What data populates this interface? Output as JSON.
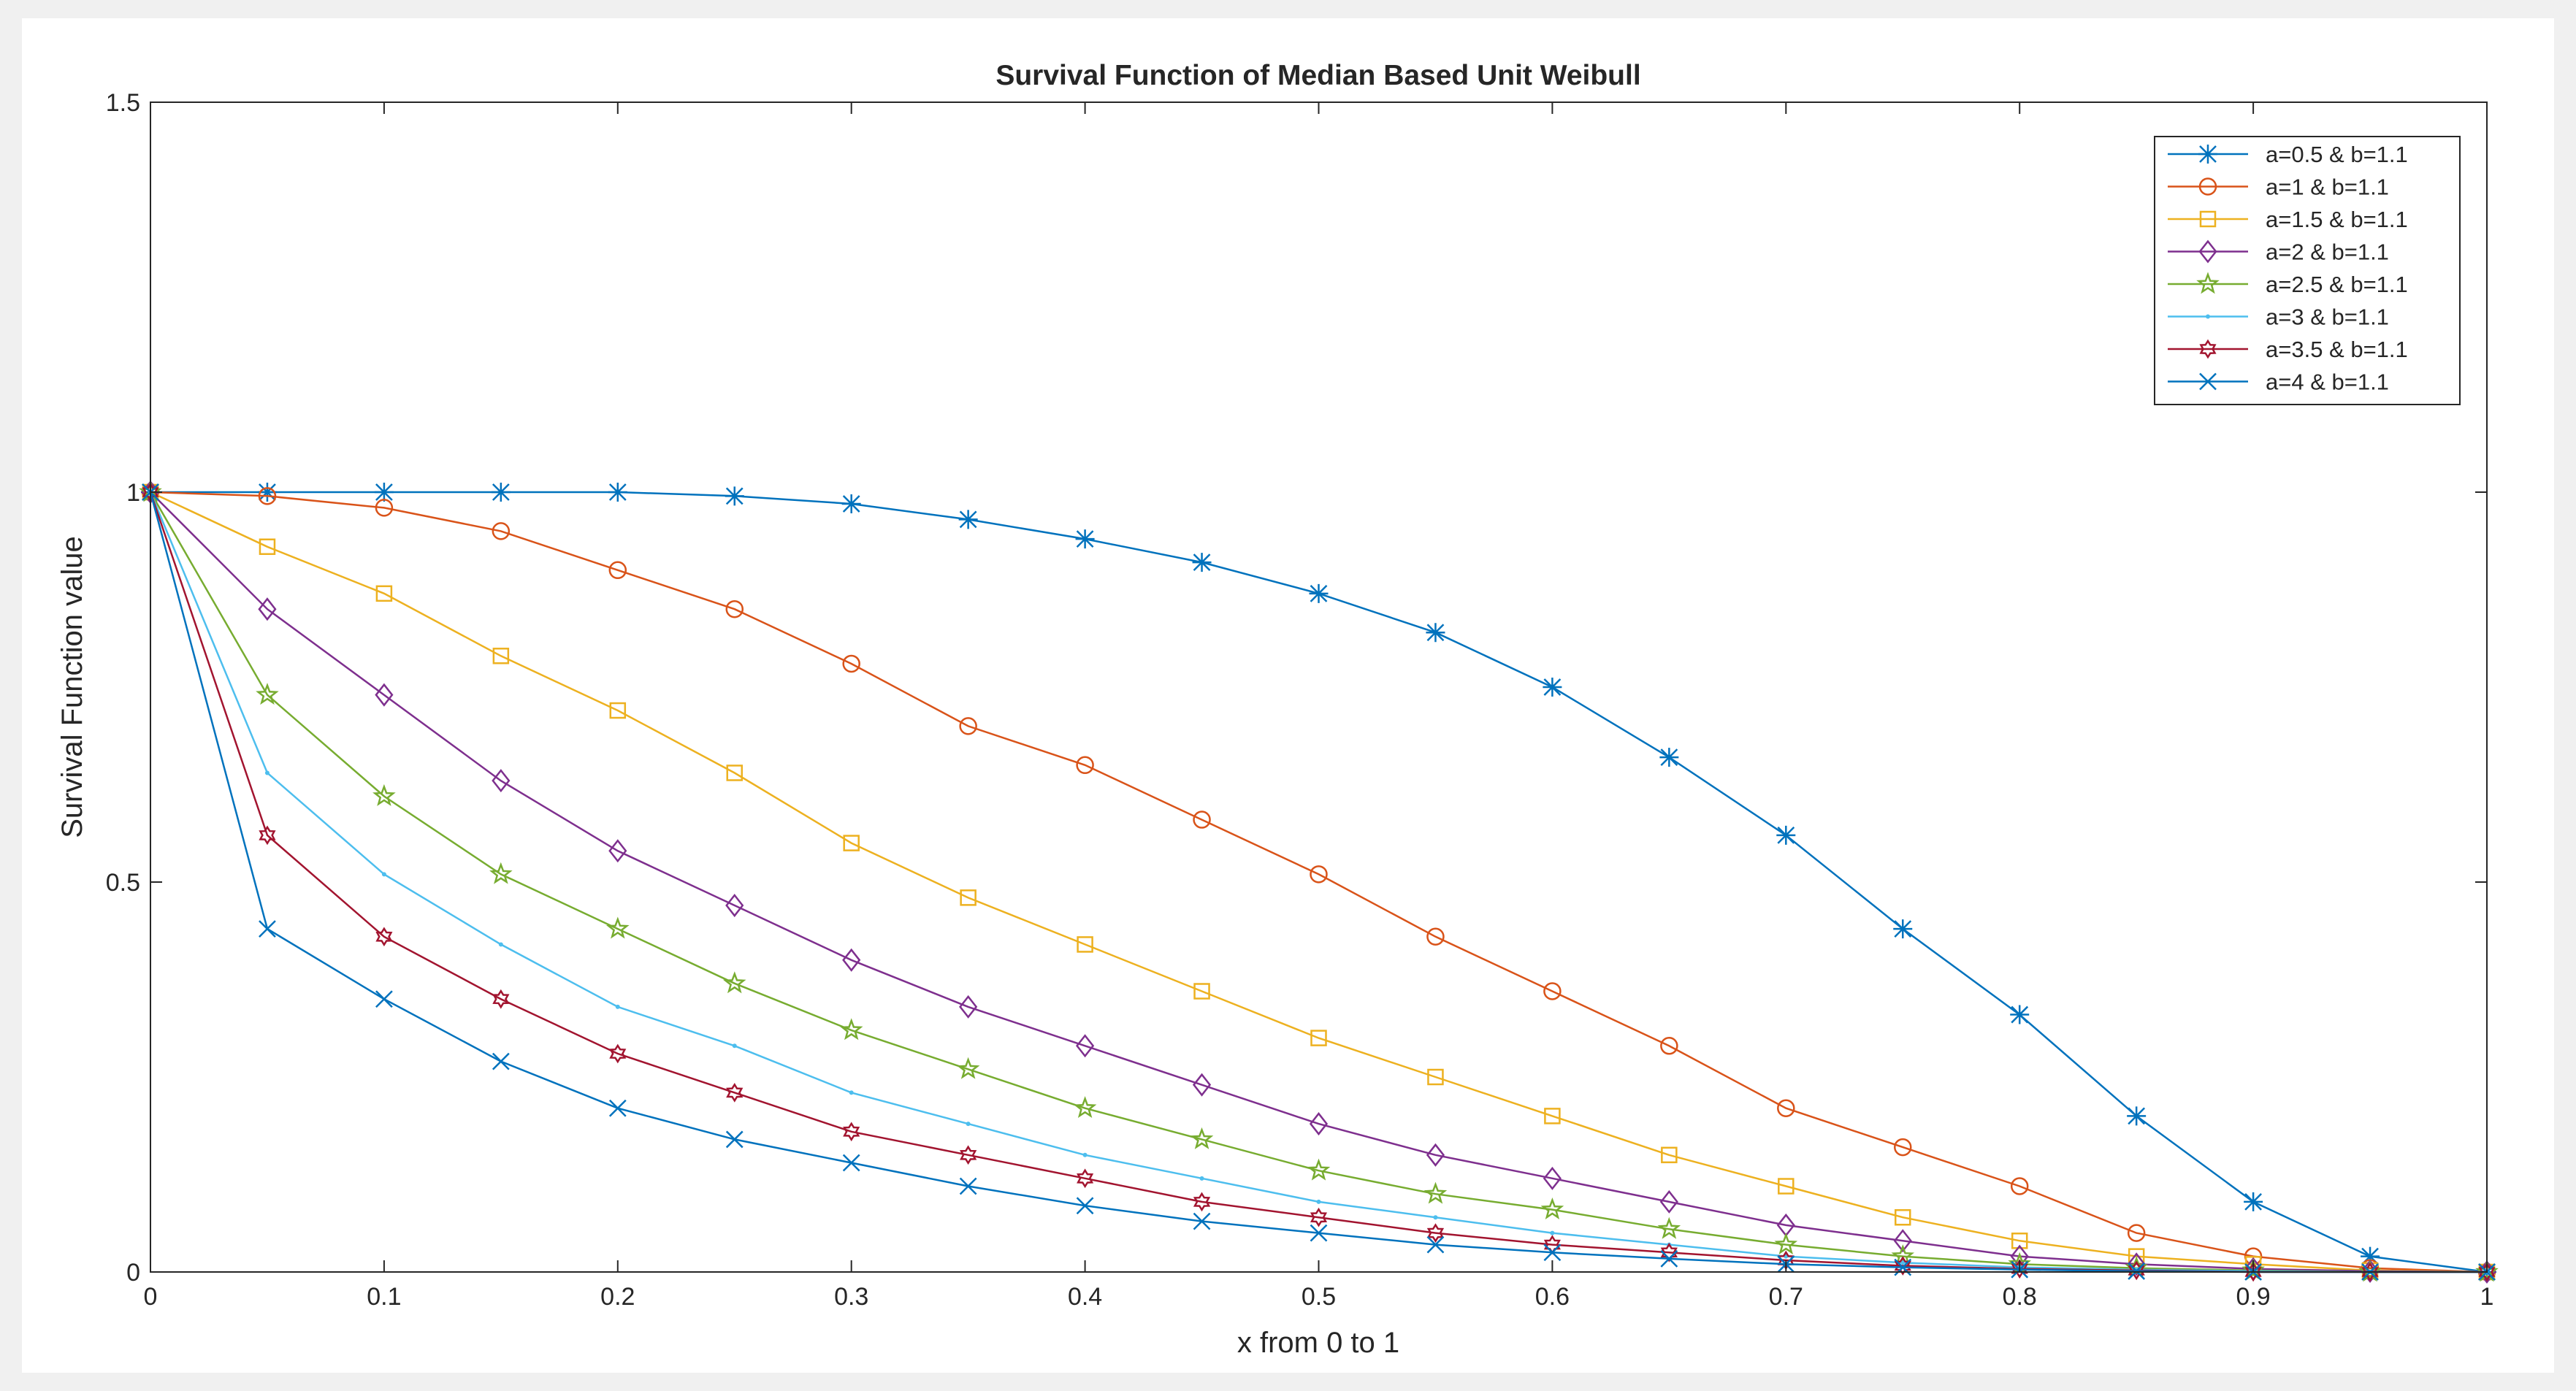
{
  "chart_data": {
    "type": "line",
    "title": "Survival Function of Median  Based  Unit Weibull",
    "xlabel": "x from 0 to 1",
    "ylabel": "Survival Function value",
    "xlim": [
      0,
      1
    ],
    "ylim": [
      0,
      1.5
    ],
    "xticks": [
      0,
      0.1,
      0.2,
      0.3,
      0.4,
      0.5,
      0.6,
      0.7,
      0.8,
      0.9,
      1
    ],
    "xtick_labels": [
      "0",
      "0.1",
      "0.2",
      "0.3",
      "0.4",
      "0.5",
      "0.6",
      "0.7",
      "0.8",
      "0.9",
      "1"
    ],
    "yticks": [
      0,
      0.5,
      1,
      1.5
    ],
    "ytick_labels": [
      "0",
      "0.5",
      "1",
      "1.5"
    ],
    "grid": false,
    "legend_position": "top-right",
    "x": [
      0,
      0.05,
      0.1,
      0.15,
      0.2,
      0.25,
      0.3,
      0.35,
      0.4,
      0.45,
      0.5,
      0.55,
      0.6,
      0.65,
      0.7,
      0.75,
      0.8,
      0.85,
      0.9,
      0.95,
      1
    ],
    "series": [
      {
        "name": "a=0.5  &  b=1.1",
        "color": "#0072BD",
        "marker": "star",
        "values": [
          1,
          1,
          1,
          1,
          1,
          0.995,
          0.985,
          0.965,
          0.94,
          0.91,
          0.87,
          0.82,
          0.75,
          0.66,
          0.56,
          0.44,
          0.33,
          0.2,
          0.09,
          0.02,
          0
        ]
      },
      {
        "name": "a=1 &  b=1.1",
        "color": "#D95319",
        "marker": "circle",
        "values": [
          1,
          0.995,
          0.98,
          0.95,
          0.9,
          0.85,
          0.78,
          0.7,
          0.65,
          0.58,
          0.51,
          0.43,
          0.36,
          0.29,
          0.21,
          0.16,
          0.11,
          0.05,
          0.02,
          0.005,
          0
        ]
      },
      {
        "name": "a=1.5  &  b=1.1",
        "color": "#EDB120",
        "marker": "square",
        "values": [
          1,
          0.93,
          0.87,
          0.79,
          0.72,
          0.64,
          0.55,
          0.48,
          0.42,
          0.36,
          0.3,
          0.25,
          0.2,
          0.15,
          0.11,
          0.07,
          0.04,
          0.02,
          0.01,
          0.002,
          0
        ]
      },
      {
        "name": "a=2  &  b=1.1",
        "color": "#7E2F8E",
        "marker": "diamond",
        "values": [
          1,
          0.85,
          0.74,
          0.63,
          0.54,
          0.47,
          0.4,
          0.34,
          0.29,
          0.24,
          0.19,
          0.15,
          0.12,
          0.09,
          0.06,
          0.04,
          0.02,
          0.01,
          0.004,
          0.001,
          0
        ]
      },
      {
        "name": "a=2.5  &  b=1.1",
        "color": "#77AC30",
        "marker": "pentagram",
        "values": [
          1,
          0.74,
          0.61,
          0.51,
          0.44,
          0.37,
          0.31,
          0.26,
          0.21,
          0.17,
          0.13,
          0.1,
          0.08,
          0.055,
          0.035,
          0.02,
          0.01,
          0.005,
          0.002,
          0,
          0
        ]
      },
      {
        "name": "a=3 &  b=1.1",
        "color": "#4DBEEE",
        "marker": "point",
        "values": [
          1,
          0.64,
          0.51,
          0.42,
          0.34,
          0.29,
          0.23,
          0.19,
          0.15,
          0.12,
          0.09,
          0.07,
          0.05,
          0.035,
          0.02,
          0.012,
          0.006,
          0.003,
          0.001,
          0,
          0
        ]
      },
      {
        "name": "a=3.5  &  b=1.1",
        "color": "#A2142F",
        "marker": "hexagram",
        "values": [
          1,
          0.56,
          0.43,
          0.35,
          0.28,
          0.23,
          0.18,
          0.15,
          0.12,
          0.09,
          0.07,
          0.05,
          0.035,
          0.025,
          0.015,
          0.008,
          0.004,
          0.002,
          0,
          0,
          0
        ]
      },
      {
        "name": "a=4  &   b=1.1",
        "color": "#0072BD",
        "marker": "x",
        "values": [
          1,
          0.44,
          0.35,
          0.27,
          0.21,
          0.17,
          0.14,
          0.11,
          0.085,
          0.065,
          0.05,
          0.035,
          0.025,
          0.017,
          0.01,
          0.006,
          0.003,
          0.001,
          0,
          0,
          0
        ]
      }
    ]
  }
}
